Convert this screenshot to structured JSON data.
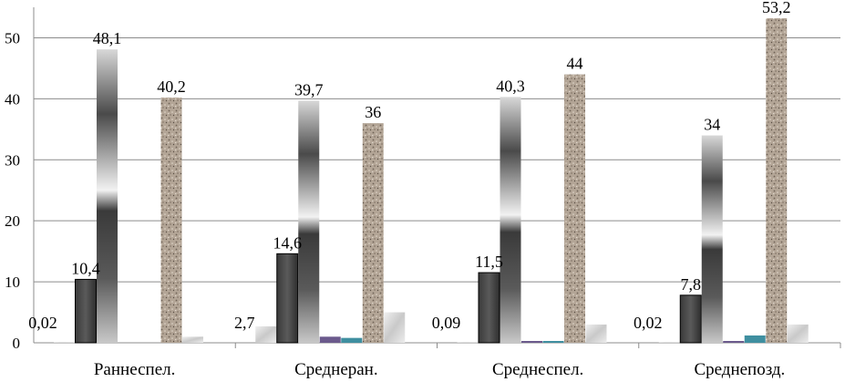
{
  "chart_data": {
    "type": "bar",
    "title": "",
    "xlabel": "",
    "ylabel": "",
    "ylim": [
      0,
      55
    ],
    "yticks": [
      0,
      10,
      20,
      30,
      40,
      50
    ],
    "grid": true,
    "categories": [
      "Раннеспел.",
      "Среднеран.",
      "Среднеспел.",
      "Среднепозд."
    ],
    "series": [
      {
        "color": "#c8c8c8",
        "values": [
          0.02,
          2.7,
          0.09,
          0.02
        ],
        "labels": [
          "0,02",
          "2,7",
          "0,09",
          "0,02"
        ]
      },
      {
        "color": "#4a4a4a",
        "values": [
          10.4,
          14.6,
          11.5,
          7.8
        ],
        "labels": [
          "10,4",
          "14,6",
          "11,5",
          "7,8"
        ]
      },
      {
        "color": "#6f6f6f",
        "values": [
          48.1,
          39.7,
          40.3,
          34
        ],
        "labels": [
          "48,1",
          "39,7",
          "40,3",
          "34"
        ]
      },
      {
        "color": "#6b5a8c",
        "values": [
          0,
          1,
          0.3,
          0.3
        ],
        "labels": [
          "",
          "",
          "",
          ""
        ]
      },
      {
        "color": "#3f8fa0",
        "values": [
          0,
          0.8,
          0.3,
          1.2
        ],
        "labels": [
          "",
          "",
          "",
          ""
        ]
      },
      {
        "color": "#a89a8a",
        "values": [
          40.2,
          36,
          44,
          53.2
        ],
        "labels": [
          "40,2",
          "36",
          "44",
          "53,2"
        ]
      },
      {
        "color": "#d8d8d8",
        "values": [
          1,
          5,
          3,
          3
        ],
        "labels": [
          "",
          "",
          "",
          ""
        ]
      }
    ]
  }
}
